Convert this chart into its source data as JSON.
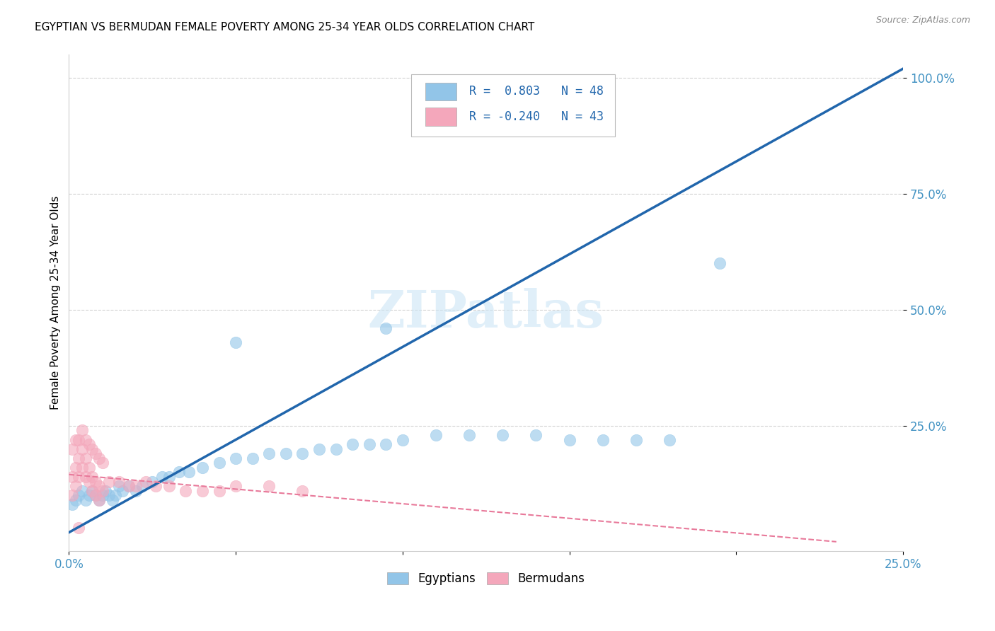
{
  "title": "EGYPTIAN VS BERMUDAN FEMALE POVERTY AMONG 25-34 YEAR OLDS CORRELATION CHART",
  "source": "Source: ZipAtlas.com",
  "ylabel": "Female Poverty Among 25-34 Year Olds",
  "xlim": [
    0.0,
    0.25
  ],
  "ylim": [
    0.0,
    1.05
  ],
  "blue_color": "#92c5e8",
  "pink_color": "#f4a7bb",
  "blue_line_color": "#2166ac",
  "pink_line_color": "#e8799a",
  "watermark": "ZIPatlas",
  "legend_R_blue": "0.803",
  "legend_N_blue": "48",
  "legend_R_pink": "-0.240",
  "legend_N_pink": "43",
  "tick_label_color": "#4393c3",
  "blue_scatter_x": [
    0.001,
    0.002,
    0.003,
    0.004,
    0.005,
    0.006,
    0.007,
    0.008,
    0.009,
    0.01,
    0.011,
    0.012,
    0.013,
    0.014,
    0.015,
    0.016,
    0.018,
    0.02,
    0.022,
    0.025,
    0.028,
    0.03,
    0.033,
    0.036,
    0.04,
    0.045,
    0.05,
    0.055,
    0.06,
    0.065,
    0.07,
    0.075,
    0.08,
    0.085,
    0.09,
    0.095,
    0.1,
    0.11,
    0.12,
    0.13,
    0.14,
    0.15,
    0.16,
    0.17,
    0.18,
    0.05,
    0.095,
    0.195
  ],
  "blue_scatter_y": [
    0.08,
    0.09,
    0.1,
    0.11,
    0.09,
    0.1,
    0.11,
    0.1,
    0.09,
    0.1,
    0.11,
    0.1,
    0.09,
    0.1,
    0.12,
    0.11,
    0.12,
    0.11,
    0.12,
    0.13,
    0.14,
    0.14,
    0.15,
    0.15,
    0.16,
    0.17,
    0.18,
    0.18,
    0.19,
    0.19,
    0.19,
    0.2,
    0.2,
    0.21,
    0.21,
    0.21,
    0.22,
    0.23,
    0.23,
    0.23,
    0.23,
    0.22,
    0.22,
    0.22,
    0.22,
    0.43,
    0.46,
    0.6
  ],
  "pink_scatter_x": [
    0.001,
    0.002,
    0.003,
    0.004,
    0.005,
    0.006,
    0.007,
    0.008,
    0.009,
    0.01,
    0.001,
    0.002,
    0.003,
    0.004,
    0.005,
    0.006,
    0.007,
    0.008,
    0.009,
    0.01,
    0.001,
    0.002,
    0.003,
    0.004,
    0.005,
    0.006,
    0.007,
    0.008,
    0.009,
    0.012,
    0.015,
    0.018,
    0.02,
    0.023,
    0.026,
    0.03,
    0.035,
    0.04,
    0.045,
    0.05,
    0.06,
    0.07,
    0.003
  ],
  "pink_scatter_y": [
    0.2,
    0.22,
    0.22,
    0.24,
    0.22,
    0.21,
    0.2,
    0.19,
    0.18,
    0.17,
    0.14,
    0.16,
    0.18,
    0.2,
    0.18,
    0.16,
    0.14,
    0.13,
    0.12,
    0.11,
    0.1,
    0.12,
    0.14,
    0.16,
    0.14,
    0.13,
    0.11,
    0.1,
    0.09,
    0.13,
    0.13,
    0.12,
    0.12,
    0.13,
    0.12,
    0.12,
    0.11,
    0.11,
    0.11,
    0.12,
    0.12,
    0.11,
    0.03
  ],
  "blue_regline_x": [
    0.0,
    0.25
  ],
  "blue_regline_y": [
    0.02,
    1.02
  ],
  "pink_regline_x": [
    0.0,
    0.23
  ],
  "pink_regline_y": [
    0.145,
    0.0
  ],
  "title_fontsize": 11,
  "source_fontsize": 9
}
